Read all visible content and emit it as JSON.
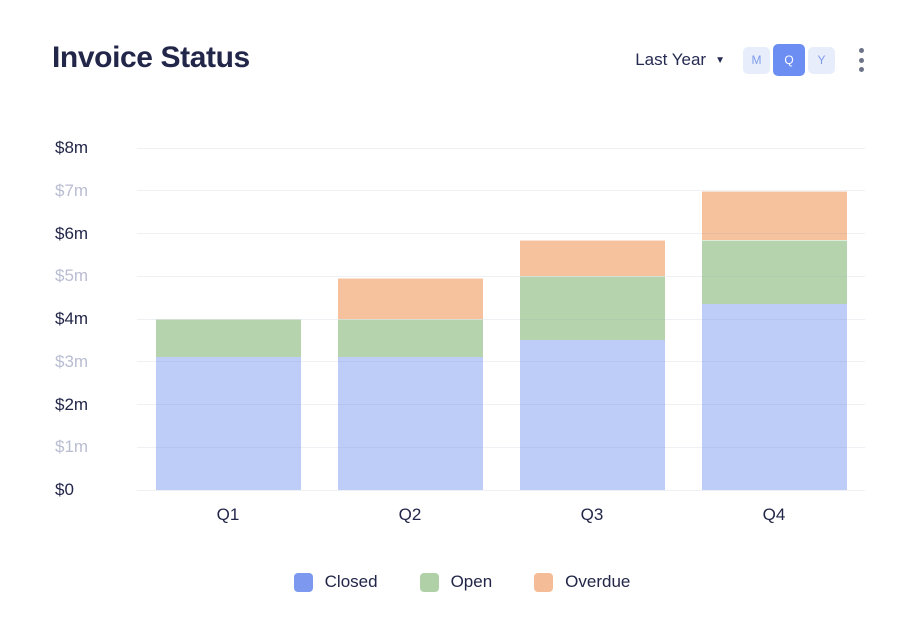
{
  "header": {
    "title": "Invoice Status",
    "period_selector": {
      "label": "Last Year",
      "icon": "chevron-down-icon"
    },
    "interval_toggle": {
      "options": [
        "M",
        "Q",
        "Y"
      ],
      "selected": "Q"
    },
    "more_menu_icon": "kebab-menu-icon"
  },
  "colors": {
    "title_text": "#222648",
    "axis_label_dark": "#222648",
    "axis_label_light": "#b9bdd2",
    "gridline_overlay": "rgba(148,152,175,0.15)",
    "toggle_selected_bg": "#6c8ef2",
    "toggle_selected_text": "#ffffff",
    "toggle_bg": "#e7edfb",
    "toggle_text": "#7f9ceb",
    "kebab_dot": "#6e7487",
    "legend_text": "#222648"
  },
  "chart_data": {
    "type": "bar",
    "stacked": true,
    "title": "Invoice Status",
    "categories": [
      "Q1",
      "Q2",
      "Q3",
      "Q4"
    ],
    "series": [
      {
        "name": "Closed",
        "values": [
          3.1,
          3.1,
          3.5,
          4.35
        ],
        "bar_color": "#bdcdf8",
        "legend_color": "#7d99ef"
      },
      {
        "name": "Open",
        "values": [
          0.9,
          0.9,
          1.5,
          1.5
        ],
        "bar_color": "#b5d4ad",
        "legend_color": "#b0d1a8"
      },
      {
        "name": "Overdue",
        "values": [
          0,
          0.95,
          0.85,
          1.15
        ],
        "bar_color": "#f6c19d",
        "legend_color": "#f4bd97"
      }
    ],
    "totals": [
      4.0,
      4.95,
      5.85,
      7.0
    ],
    "ylim": [
      0,
      8
    ],
    "ytick_step": 1,
    "ytick_labels": [
      "$0",
      "$1m",
      "$2m",
      "$3m",
      "$4m",
      "$5m",
      "$6m",
      "$7m",
      "$8m"
    ],
    "xlabel": "",
    "ylabel": "",
    "grid": "horizontal",
    "legend_position": "bottom",
    "legend": [
      "Closed",
      "Open",
      "Overdue"
    ]
  }
}
